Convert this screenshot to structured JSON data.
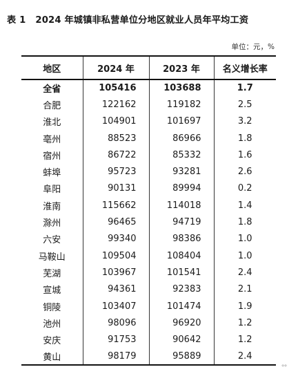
{
  "title": {
    "table_no": "表 1",
    "text": "2024 年城镇非私营单位分地区就业人员年平均工资"
  },
  "unit": "单位：元，%",
  "columns": [
    "地区",
    "2024 年",
    "2023 年",
    "名义增长率"
  ],
  "rows": [
    {
      "region": "全省",
      "y2024": "105416",
      "y2023": "103688",
      "growth": "1.7"
    },
    {
      "region": "合肥",
      "y2024": "122162",
      "y2023": "119182",
      "growth": "2.5"
    },
    {
      "region": "淮北",
      "y2024": "104901",
      "y2023": "101697",
      "growth": "3.2"
    },
    {
      "region": "亳州",
      "y2024": "88523",
      "y2023": "86966",
      "growth": "1.8"
    },
    {
      "region": "宿州",
      "y2024": "86722",
      "y2023": "85332",
      "growth": "1.6"
    },
    {
      "region": "蚌埠",
      "y2024": "95723",
      "y2023": "93281",
      "growth": "2.6"
    },
    {
      "region": "阜阳",
      "y2024": "90131",
      "y2023": "89994",
      "growth": "0.2"
    },
    {
      "region": "淮南",
      "y2024": "115662",
      "y2023": "114018",
      "growth": "1.4"
    },
    {
      "region": "滁州",
      "y2024": "96465",
      "y2023": "94719",
      "growth": "1.8"
    },
    {
      "region": "六安",
      "y2024": "99340",
      "y2023": "98386",
      "growth": "1.0"
    },
    {
      "region": "马鞍山",
      "y2024": "109504",
      "y2023": "108404",
      "growth": "1.0"
    },
    {
      "region": "芜湖",
      "y2024": "103967",
      "y2023": "101541",
      "growth": "2.4"
    },
    {
      "region": "宣城",
      "y2024": "94361",
      "y2023": "92383",
      "growth": "2.1"
    },
    {
      "region": "铜陵",
      "y2024": "103407",
      "y2023": "101474",
      "growth": "1.9"
    },
    {
      "region": "池州",
      "y2024": "98096",
      "y2023": "96920",
      "growth": "1.2"
    },
    {
      "region": "安庆",
      "y2024": "91753",
      "y2023": "90642",
      "growth": "1.2"
    },
    {
      "region": "黄山",
      "y2024": "98179",
      "y2023": "95889",
      "growth": "2.4"
    }
  ]
}
